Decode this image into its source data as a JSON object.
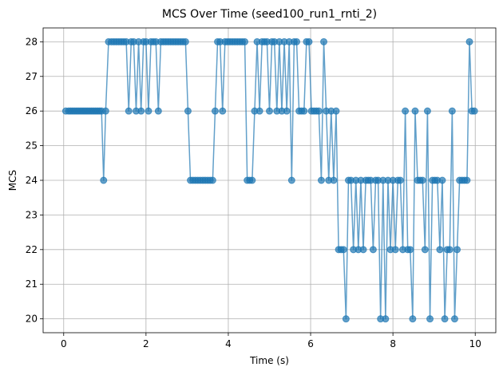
{
  "chart_data": {
    "type": "line",
    "title": "MCS Over Time (seed100_run1_rnti_2)",
    "xlabel": "Time (s)",
    "ylabel": "MCS",
    "xlim": [
      -0.5,
      10.5
    ],
    "ylim": [
      19.6,
      28.4
    ],
    "xticks": [
      0,
      2,
      4,
      6,
      8,
      10
    ],
    "yticks": [
      20,
      21,
      22,
      23,
      24,
      25,
      26,
      27,
      28
    ],
    "grid": true,
    "series": [
      {
        "color": "#1f77b4",
        "marker": "circle",
        "x": [
          0.05,
          0.12,
          0.17,
          0.22,
          0.27,
          0.32,
          0.37,
          0.42,
          0.47,
          0.52,
          0.57,
          0.62,
          0.67,
          0.72,
          0.77,
          0.82,
          0.87,
          0.92,
          0.97,
          1.02,
          1.09,
          1.16,
          1.22,
          1.28,
          1.34,
          1.4,
          1.46,
          1.52,
          1.58,
          1.64,
          1.7,
          1.76,
          1.82,
          1.88,
          1.94,
          2.0,
          2.06,
          2.12,
          2.18,
          2.24,
          2.3,
          2.36,
          2.42,
          2.48,
          2.54,
          2.6,
          2.66,
          2.72,
          2.78,
          2.84,
          2.9,
          2.96,
          3.02,
          3.08,
          3.14,
          3.2,
          3.26,
          3.32,
          3.38,
          3.44,
          3.5,
          3.56,
          3.62,
          3.68,
          3.74,
          3.8,
          3.86,
          3.92,
          3.98,
          4.04,
          4.1,
          4.16,
          4.22,
          4.28,
          4.34,
          4.4,
          4.46,
          4.52,
          4.58,
          4.64,
          4.7,
          4.76,
          4.82,
          4.88,
          4.94,
          5.0,
          5.06,
          5.12,
          5.18,
          5.24,
          5.3,
          5.36,
          5.42,
          5.48,
          5.54,
          5.6,
          5.66,
          5.72,
          5.78,
          5.84,
          5.9,
          5.96,
          6.02,
          6.08,
          6.14,
          6.2,
          6.26,
          6.32,
          6.38,
          6.44,
          6.5,
          6.56,
          6.62,
          6.68,
          6.74,
          6.8,
          6.86,
          6.92,
          6.98,
          7.04,
          7.1,
          7.16,
          7.22,
          7.28,
          7.34,
          7.4,
          7.46,
          7.52,
          7.58,
          7.64,
          7.7,
          7.76,
          7.82,
          7.88,
          7.94,
          8.0,
          8.06,
          8.12,
          8.18,
          8.24,
          8.3,
          8.36,
          8.42,
          8.48,
          8.54,
          8.6,
          8.66,
          8.72,
          8.78,
          8.84,
          8.9,
          8.96,
          9.02,
          9.08,
          9.14,
          9.2,
          9.26,
          9.32,
          9.38,
          9.44,
          9.5,
          9.56,
          9.62,
          9.68,
          9.74,
          9.8,
          9.86,
          9.92,
          9.98
        ],
        "y": [
          26,
          26,
          26,
          26,
          26,
          26,
          26,
          26,
          26,
          26,
          26,
          26,
          26,
          26,
          26,
          26,
          26,
          26,
          24,
          26,
          28,
          28,
          28,
          28,
          28,
          28,
          28,
          28,
          26,
          28,
          28,
          26,
          28,
          26,
          28,
          28,
          26,
          28,
          28,
          28,
          26,
          28,
          28,
          28,
          28,
          28,
          28,
          28,
          28,
          28,
          28,
          28,
          26,
          24,
          24,
          24,
          24,
          24,
          24,
          24,
          24,
          24,
          24,
          26,
          28,
          28,
          26,
          28,
          28,
          28,
          28,
          28,
          28,
          28,
          28,
          28,
          24,
          24,
          24,
          26,
          28,
          26,
          28,
          28,
          28,
          26,
          28,
          28,
          26,
          28,
          26,
          28,
          26,
          28,
          24,
          28,
          28,
          26,
          26,
          26,
          28,
          28,
          26,
          26,
          26,
          26,
          24,
          28,
          26,
          24,
          26,
          24,
          26,
          22,
          22,
          22,
          20,
          24,
          24,
          22,
          24,
          22,
          24,
          22,
          24,
          24,
          24,
          22,
          24,
          24,
          20,
          24,
          20,
          24,
          22,
          24,
          22,
          24,
          24,
          22,
          26,
          22,
          22,
          20,
          26,
          24,
          24,
          24,
          22,
          26,
          20,
          24,
          24,
          24,
          22,
          24,
          20,
          22,
          22,
          26,
          20,
          22,
          24,
          24,
          24,
          24,
          28,
          26,
          26
        ]
      }
    ]
  }
}
